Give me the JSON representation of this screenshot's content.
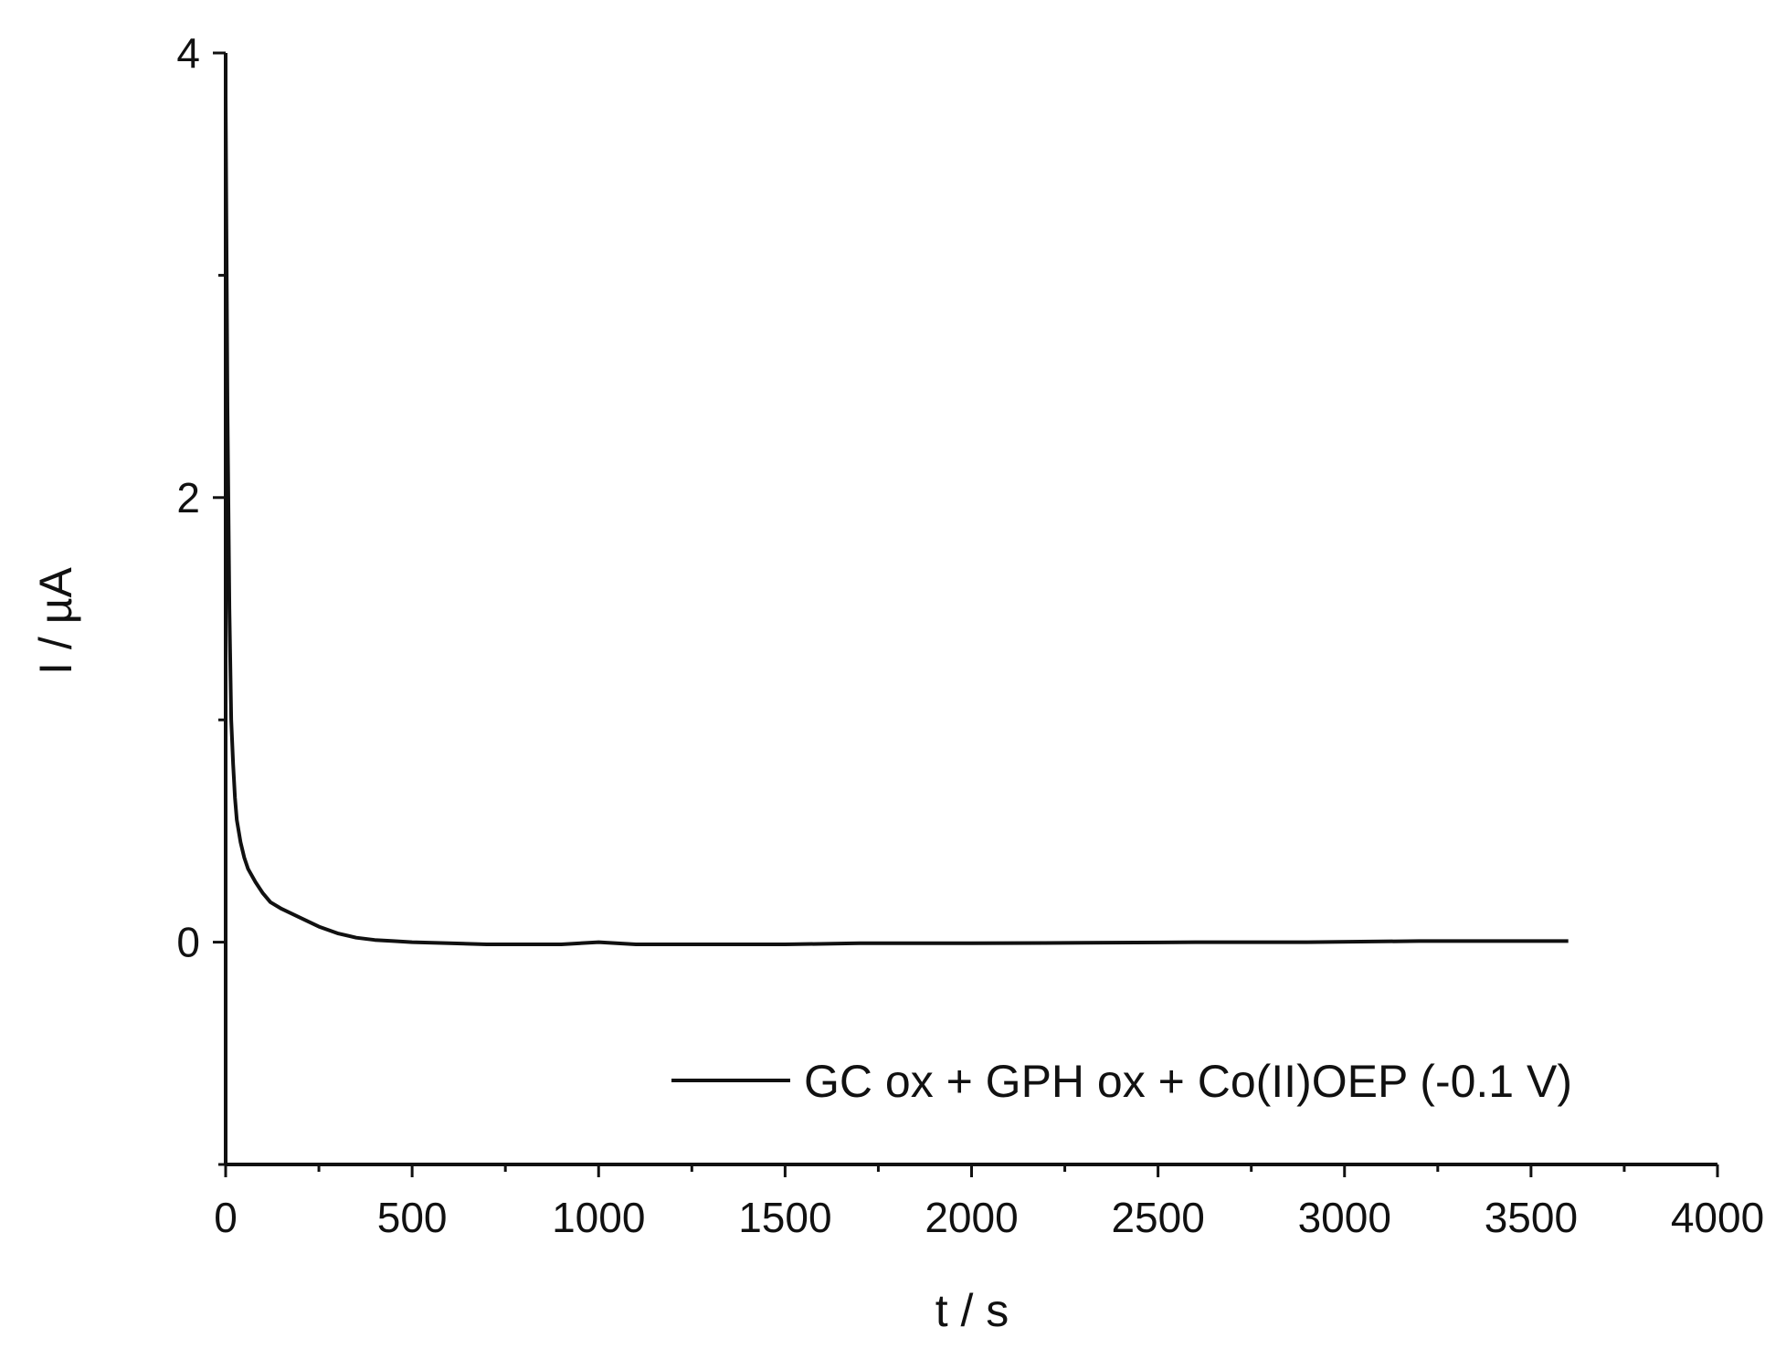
{
  "chart_data": {
    "type": "line",
    "title": "",
    "xlabel": "t / s",
    "ylabel": "I / µA",
    "xlim": [
      0,
      4000
    ],
    "ylim": [
      -1,
      4
    ],
    "x_ticks": [
      0,
      500,
      1000,
      1500,
      2000,
      2500,
      3000,
      3500,
      4000
    ],
    "y_ticks": [
      0,
      2,
      4
    ],
    "x_minor_step": 250,
    "y_minor_step": 1,
    "grid": false,
    "legend_position": "bottom-right",
    "line_color": "#111111",
    "series": [
      {
        "name": "GC ox + GPH ox + Co(II)OEP (-0.1 V)",
        "x": [
          0,
          5,
          10,
          15,
          20,
          25,
          30,
          40,
          50,
          60,
          80,
          100,
          120,
          150,
          200,
          250,
          300,
          350,
          400,
          450,
          500,
          600,
          700,
          800,
          900,
          1000,
          1100,
          1200,
          1300,
          1500,
          1700,
          2000,
          2300,
          2600,
          2900,
          3200,
          3400,
          3600
        ],
        "y": [
          3.8,
          2.4,
          1.5,
          1.0,
          0.8,
          0.65,
          0.55,
          0.45,
          0.38,
          0.33,
          0.27,
          0.22,
          0.18,
          0.15,
          0.11,
          0.07,
          0.04,
          0.02,
          0.01,
          0.005,
          0.0,
          -0.005,
          -0.01,
          -0.01,
          -0.01,
          0.0,
          -0.01,
          -0.01,
          -0.01,
          -0.01,
          -0.005,
          -0.005,
          -0.003,
          0.0,
          0.0,
          0.005,
          0.005,
          0.005
        ]
      }
    ]
  }
}
